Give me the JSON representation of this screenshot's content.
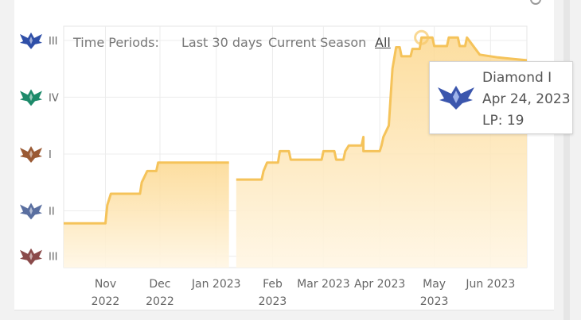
{
  "time_periods": {
    "label": "Time Periods:",
    "options": [
      "Last 30 days",
      "Current Season",
      "All"
    ],
    "selected": "All"
  },
  "tooltip": {
    "rank": "Diamond I",
    "date": "Apr 24, 2023",
    "lp": "LP: 19",
    "icon": "diamond-emblem-icon"
  },
  "colors": {
    "line": "#f5c35a",
    "fill": "#fde6b8",
    "grid": "#ececec",
    "rank_icons": [
      "#2f4fa8",
      "#1d8a6a",
      "#9a5a34",
      "#5a6fa0",
      "#8a4a4a"
    ]
  },
  "chart_data": {
    "type": "area",
    "title": "",
    "xlabel": "",
    "ylabel": "",
    "grid": true,
    "y_ticks": [
      {
        "label": "III",
        "icon": "diamond-emblem-icon",
        "color": "#2f4fa8"
      },
      {
        "label": "IV",
        "icon": "emerald-emblem-icon",
        "color": "#1d8a6a"
      },
      {
        "label": "I",
        "icon": "bronze-emblem-icon",
        "color": "#9a5a34"
      },
      {
        "label": "II",
        "icon": "silver-emblem-icon",
        "color": "#5a6fa0"
      },
      {
        "label": "III",
        "icon": "iron-emblem-icon",
        "color": "#8a4a4a"
      }
    ],
    "x_ticks": [
      {
        "date": "2022-11-01",
        "line1": "Nov",
        "line2": "2022"
      },
      {
        "date": "2022-12-01",
        "line1": "Dec",
        "line2": "2022"
      },
      {
        "date": "2023-01-01",
        "line1": "Jan 2023",
        "line2": ""
      },
      {
        "date": "2023-02-01",
        "line1": "Feb",
        "line2": "2023"
      },
      {
        "date": "2023-03-01",
        "line1": "Mar 2023",
        "line2": ""
      },
      {
        "date": "2023-04-01",
        "line1": "Apr 2023",
        "line2": ""
      },
      {
        "date": "2023-05-01",
        "line1": "May",
        "line2": "2023"
      },
      {
        "date": "2023-06-01",
        "line1": "Jun 2023",
        "line2": ""
      }
    ],
    "x_range": [
      "2022-10-09",
      "2023-06-21"
    ],
    "y_range": [
      0,
      4.25
    ],
    "highlight": {
      "date": "2023-04-24",
      "y": 4.05
    },
    "series": [
      {
        "points": [
          [
            "2022-10-09",
            0.78
          ],
          [
            "2022-11-01",
            0.78
          ],
          [
            "2022-11-02",
            1.1
          ],
          [
            "2022-11-04",
            1.3
          ],
          [
            "2022-11-20",
            1.3
          ],
          [
            "2022-11-21",
            1.5
          ],
          [
            "2022-11-24",
            1.7
          ],
          [
            "2022-11-29",
            1.7
          ],
          [
            "2022-11-30",
            1.85
          ],
          [
            "2023-01-08",
            1.85
          ],
          [
            "2023-01-12",
            1.55
          ],
          [
            "2023-01-26",
            1.55
          ],
          [
            "2023-01-27",
            1.7
          ],
          [
            "2023-01-29",
            1.85
          ],
          [
            "2023-02-04",
            1.85
          ],
          [
            "2023-02-05",
            2.05
          ],
          [
            "2023-02-10",
            2.05
          ],
          [
            "2023-02-11",
            1.9
          ],
          [
            "2023-02-28",
            1.9
          ],
          [
            "2023-03-01",
            2.05
          ],
          [
            "2023-03-07",
            2.05
          ],
          [
            "2023-03-08",
            1.9
          ],
          [
            "2023-03-12",
            1.9
          ],
          [
            "2023-03-13",
            2.05
          ],
          [
            "2023-03-15",
            2.15
          ],
          [
            "2023-03-22",
            2.15
          ],
          [
            "2023-03-23",
            2.3
          ],
          [
            "2023-03-23",
            2.05
          ],
          [
            "2023-04-01",
            2.05
          ],
          [
            "2023-04-02",
            2.15
          ],
          [
            "2023-04-03",
            2.3
          ],
          [
            "2023-04-06",
            2.5
          ],
          [
            "2023-04-08",
            3.5
          ],
          [
            "2023-04-10",
            3.88
          ],
          [
            "2023-04-12",
            3.88
          ],
          [
            "2023-04-13",
            3.72
          ],
          [
            "2023-04-18",
            3.72
          ],
          [
            "2023-04-19",
            3.85
          ],
          [
            "2023-04-23",
            3.85
          ],
          [
            "2023-04-24",
            4.05
          ],
          [
            "2023-04-30",
            4.05
          ],
          [
            "2023-05-01",
            3.9
          ],
          [
            "2023-05-08",
            3.9
          ],
          [
            "2023-05-09",
            4.05
          ],
          [
            "2023-05-14",
            4.05
          ],
          [
            "2023-05-15",
            3.9
          ],
          [
            "2023-05-18",
            3.9
          ],
          [
            "2023-05-19",
            4.05
          ],
          [
            "2023-05-26",
            3.75
          ],
          [
            "2023-06-05",
            3.7
          ],
          [
            "2023-06-21",
            3.65
          ]
        ],
        "gaps": [
          [
            "2023-01-08",
            "2023-01-12"
          ]
        ]
      }
    ]
  }
}
